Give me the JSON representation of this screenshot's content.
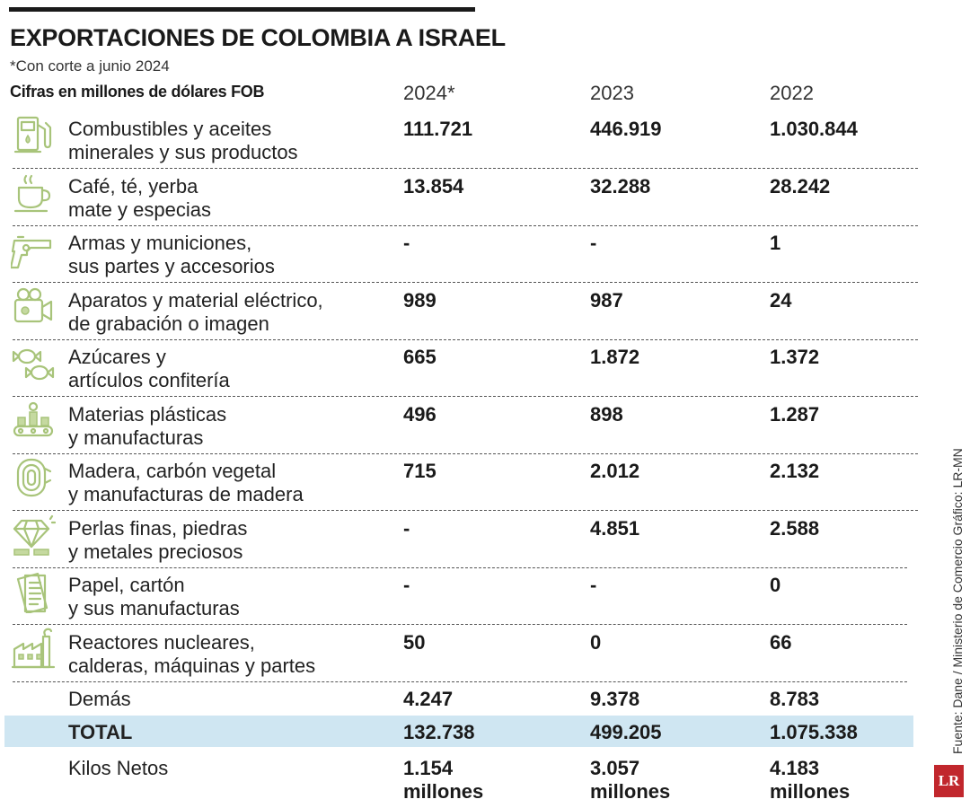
{
  "header": {
    "title": "EXPORTACIONES DE COLOMBIA A ISRAEL",
    "note": "*Con corte a junio 2024",
    "units": "Cifras en millones de dólares FOB"
  },
  "years": [
    "2024*",
    "2023",
    "2022"
  ],
  "chart_data": {
    "type": "table",
    "title": "EXPORTACIONES DE COLOMBIA A ISRAEL",
    "subtitle": "*Con corte a junio 2024",
    "columns": [
      "2024*",
      "2023",
      "2022"
    ],
    "rows": [
      {
        "label": "Combustibles y aceites minerales y sus productos",
        "label_lines": [
          "Combustibles y aceites",
          "minerales y sus productos"
        ],
        "icon": "fuel-pump-icon",
        "values": [
          "111.721",
          "446.919",
          "1.030.844"
        ]
      },
      {
        "label": "Café, té, yerba mate y especias",
        "label_lines": [
          "Café, té, yerba",
          "mate y especias"
        ],
        "icon": "coffee-cup-icon",
        "values": [
          "13.854",
          "32.288",
          "28.242"
        ]
      },
      {
        "label": "Armas y municiones, sus partes y accesorios",
        "label_lines": [
          "Armas y municiones,",
          "sus partes y accesorios"
        ],
        "icon": "pistol-icon",
        "values": [
          "-",
          "-",
          "1"
        ]
      },
      {
        "label": "Aparatos y material eléctrico, de grabación o imagen",
        "label_lines": [
          "Aparatos y material eléctrico,",
          "de grabación o imagen"
        ],
        "icon": "video-camera-icon",
        "values": [
          "989",
          "987",
          "24"
        ]
      },
      {
        "label": "Azúcares y artículos confitería",
        "label_lines": [
          "Azúcares y",
          "artículos confitería"
        ],
        "icon": "candy-icon",
        "values": [
          "665",
          "1.872",
          "1.372"
        ]
      },
      {
        "label": "Materias plásticas y manufacturas",
        "label_lines": [
          "Materias plásticas",
          "y manufacturas"
        ],
        "icon": "factory-conveyor-icon",
        "values": [
          "496",
          "898",
          "1.287"
        ]
      },
      {
        "label": "Madera, carbón vegetal y manufacturas de madera",
        "label_lines": [
          "Madera, carbón vegetal",
          "y manufacturas de madera"
        ],
        "icon": "wood-log-icon",
        "values": [
          "715",
          "2.012",
          "2.132"
        ]
      },
      {
        "label": "Perlas finas, piedras y metales preciosos",
        "label_lines": [
          "Perlas finas, piedras",
          "y metales preciosos"
        ],
        "icon": "diamond-icon",
        "values": [
          "-",
          "4.851",
          "2.588"
        ]
      },
      {
        "label": "Papel, cartón y sus manufacturas",
        "label_lines": [
          "Papel, cartón",
          "y sus manufacturas"
        ],
        "icon": "paper-sheets-icon",
        "values": [
          "-",
          "-",
          "0"
        ]
      },
      {
        "label": "Reactores nucleares, calderas, máquinas y partes",
        "label_lines": [
          "Reactores nucleares,",
          "calderas, máquinas y partes"
        ],
        "icon": "industrial-plant-icon",
        "values": [
          "50",
          "0",
          "66"
        ]
      },
      {
        "label": "Demás",
        "label_lines": [
          "Demás"
        ],
        "icon": "",
        "values": [
          "4.247",
          "9.378",
          "8.783"
        ]
      }
    ],
    "total": {
      "label": "TOTAL",
      "values": [
        "132.738",
        "499.205",
        "1.075.338"
      ]
    },
    "kilos": {
      "label": "Kilos Netos",
      "values": [
        "1.154",
        "3.057",
        "4.183"
      ],
      "unit": "millones"
    }
  },
  "footer": {
    "source": "Fuente: Dane / Ministerio de Comercio  Gráfico: LR-MN",
    "logo": "LR"
  },
  "colors": {
    "icon": "#a8c47a",
    "total_highlight": "#cfe6f2",
    "logo": "#c1272d"
  }
}
